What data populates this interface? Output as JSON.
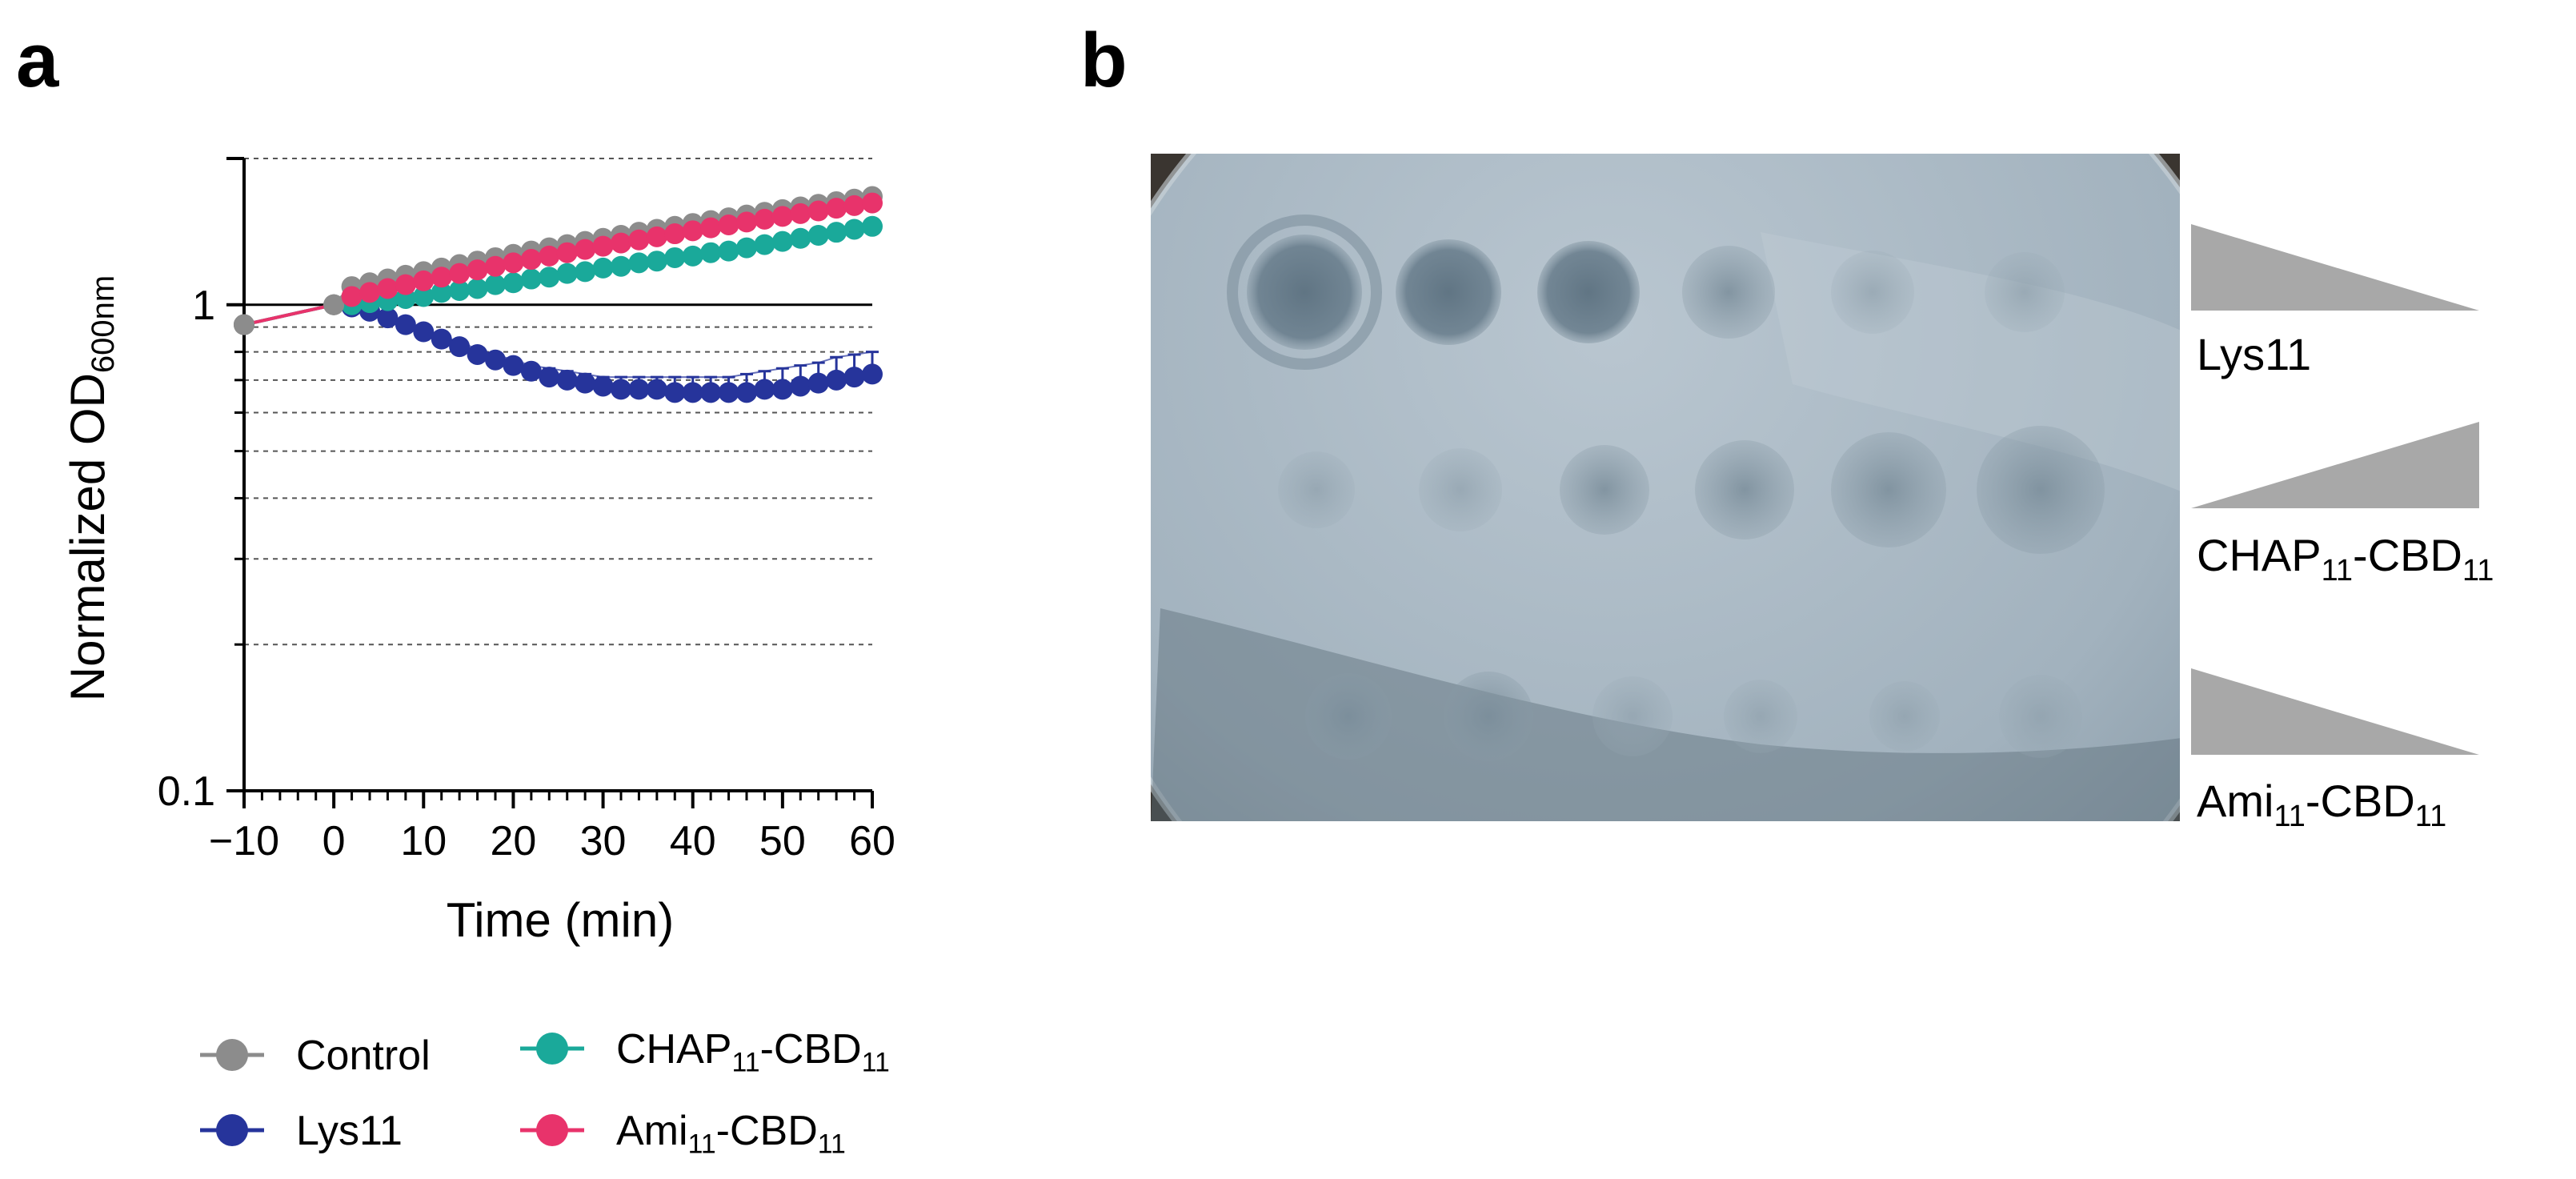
{
  "panels": {
    "a": {
      "letter": "a"
    },
    "b": {
      "letter": "b"
    }
  },
  "chart_data": {
    "type": "line",
    "title": "",
    "xlabel": "Time (min)",
    "ylabel": {
      "main": "Normalized OD",
      "sub": "600nm"
    },
    "xlim": [
      -10,
      60
    ],
    "ylim": [
      0.1,
      2
    ],
    "yscale": "log",
    "x_ticks": [
      {
        "value": -10,
        "label": "−10"
      },
      {
        "value": 0,
        "label": "0"
      },
      {
        "value": 10,
        "label": "10"
      },
      {
        "value": 20,
        "label": "20"
      },
      {
        "value": 30,
        "label": "30"
      },
      {
        "value": 40,
        "label": "40"
      },
      {
        "value": 50,
        "label": "50"
      },
      {
        "value": 60,
        "label": "60"
      }
    ],
    "y_ticks": [
      {
        "value": 1,
        "label": "1"
      },
      {
        "value": 0.1,
        "label": "0.1"
      }
    ],
    "grid": "dotted horizontal lines at log minor ticks",
    "legend_placement": "bottom",
    "series": [
      {
        "name": "Control",
        "color": "#8c8c8c",
        "x": [
          -10,
          0,
          2,
          4,
          6,
          8,
          10,
          12,
          14,
          16,
          18,
          20,
          22,
          24,
          26,
          28,
          30,
          32,
          34,
          36,
          38,
          40,
          42,
          44,
          46,
          48,
          50,
          52,
          54,
          56,
          58,
          60
        ],
        "y": [
          0.91,
          1.0,
          1.09,
          1.11,
          1.13,
          1.15,
          1.17,
          1.19,
          1.21,
          1.23,
          1.25,
          1.27,
          1.29,
          1.31,
          1.33,
          1.35,
          1.37,
          1.39,
          1.41,
          1.43,
          1.45,
          1.47,
          1.49,
          1.51,
          1.53,
          1.55,
          1.57,
          1.59,
          1.61,
          1.63,
          1.65,
          1.67
        ]
      },
      {
        "name": "Lys11",
        "color": "#26349b",
        "x": [
          -10,
          0,
          2,
          4,
          6,
          8,
          10,
          12,
          14,
          16,
          18,
          20,
          22,
          24,
          26,
          28,
          30,
          32,
          34,
          36,
          38,
          40,
          42,
          44,
          46,
          48,
          50,
          52,
          54,
          56,
          58,
          60
        ],
        "y": [
          0.91,
          1.0,
          0.99,
          0.97,
          0.94,
          0.91,
          0.88,
          0.85,
          0.82,
          0.79,
          0.77,
          0.75,
          0.73,
          0.71,
          0.7,
          0.69,
          0.68,
          0.67,
          0.67,
          0.67,
          0.66,
          0.66,
          0.66,
          0.66,
          0.66,
          0.67,
          0.67,
          0.68,
          0.69,
          0.7,
          0.71,
          0.72
        ],
        "error_upper": [
          0.91,
          1.0,
          0.99,
          0.98,
          0.95,
          0.92,
          0.89,
          0.86,
          0.84,
          0.81,
          0.79,
          0.77,
          0.75,
          0.74,
          0.73,
          0.72,
          0.71,
          0.71,
          0.71,
          0.71,
          0.71,
          0.71,
          0.71,
          0.71,
          0.72,
          0.73,
          0.74,
          0.75,
          0.76,
          0.78,
          0.79,
          0.8
        ]
      },
      {
        "name": "CHAP",
        "name_sub": "11",
        "name_suffix": "-CBD",
        "name_suffix_sub": "11",
        "color": "#1aa99a",
        "x": [
          -10,
          0,
          2,
          4,
          6,
          8,
          10,
          12,
          14,
          16,
          18,
          20,
          22,
          24,
          26,
          28,
          30,
          32,
          34,
          36,
          38,
          40,
          42,
          44,
          46,
          48,
          50,
          52,
          54,
          56,
          58,
          60
        ],
        "y": [
          0.91,
          1.0,
          1.0,
          1.01,
          1.02,
          1.03,
          1.04,
          1.06,
          1.07,
          1.08,
          1.1,
          1.11,
          1.13,
          1.14,
          1.16,
          1.17,
          1.19,
          1.2,
          1.22,
          1.23,
          1.25,
          1.26,
          1.28,
          1.29,
          1.31,
          1.33,
          1.35,
          1.37,
          1.39,
          1.41,
          1.43,
          1.45
        ]
      },
      {
        "name": "Ami",
        "name_sub": "11",
        "name_suffix": "-CBD",
        "name_suffix_sub": "11",
        "color": "#e8336b",
        "x": [
          -10,
          0,
          2,
          4,
          6,
          8,
          10,
          12,
          14,
          16,
          18,
          20,
          22,
          24,
          26,
          28,
          30,
          32,
          34,
          36,
          38,
          40,
          42,
          44,
          46,
          48,
          50,
          52,
          54,
          56,
          58,
          60
        ],
        "y": [
          0.91,
          1.0,
          1.04,
          1.06,
          1.08,
          1.1,
          1.12,
          1.14,
          1.16,
          1.18,
          1.2,
          1.22,
          1.24,
          1.26,
          1.28,
          1.3,
          1.32,
          1.34,
          1.36,
          1.38,
          1.4,
          1.42,
          1.44,
          1.46,
          1.48,
          1.5,
          1.52,
          1.54,
          1.56,
          1.58,
          1.6,
          1.62
        ]
      }
    ]
  },
  "plate": {
    "rows": [
      {
        "label": "Lys11",
        "label_sub": "",
        "label_suffix": "",
        "label_suffix_sub": "",
        "gradient": "decreasing"
      },
      {
        "label": "CHAP",
        "label_sub": "11",
        "label_suffix": "-CBD",
        "label_suffix_sub": "11",
        "gradient": "increasing"
      },
      {
        "label": "Ami",
        "label_sub": "11",
        "label_suffix": "-CBD",
        "label_suffix_sub": "11",
        "gradient": "decreasing"
      }
    ]
  }
}
